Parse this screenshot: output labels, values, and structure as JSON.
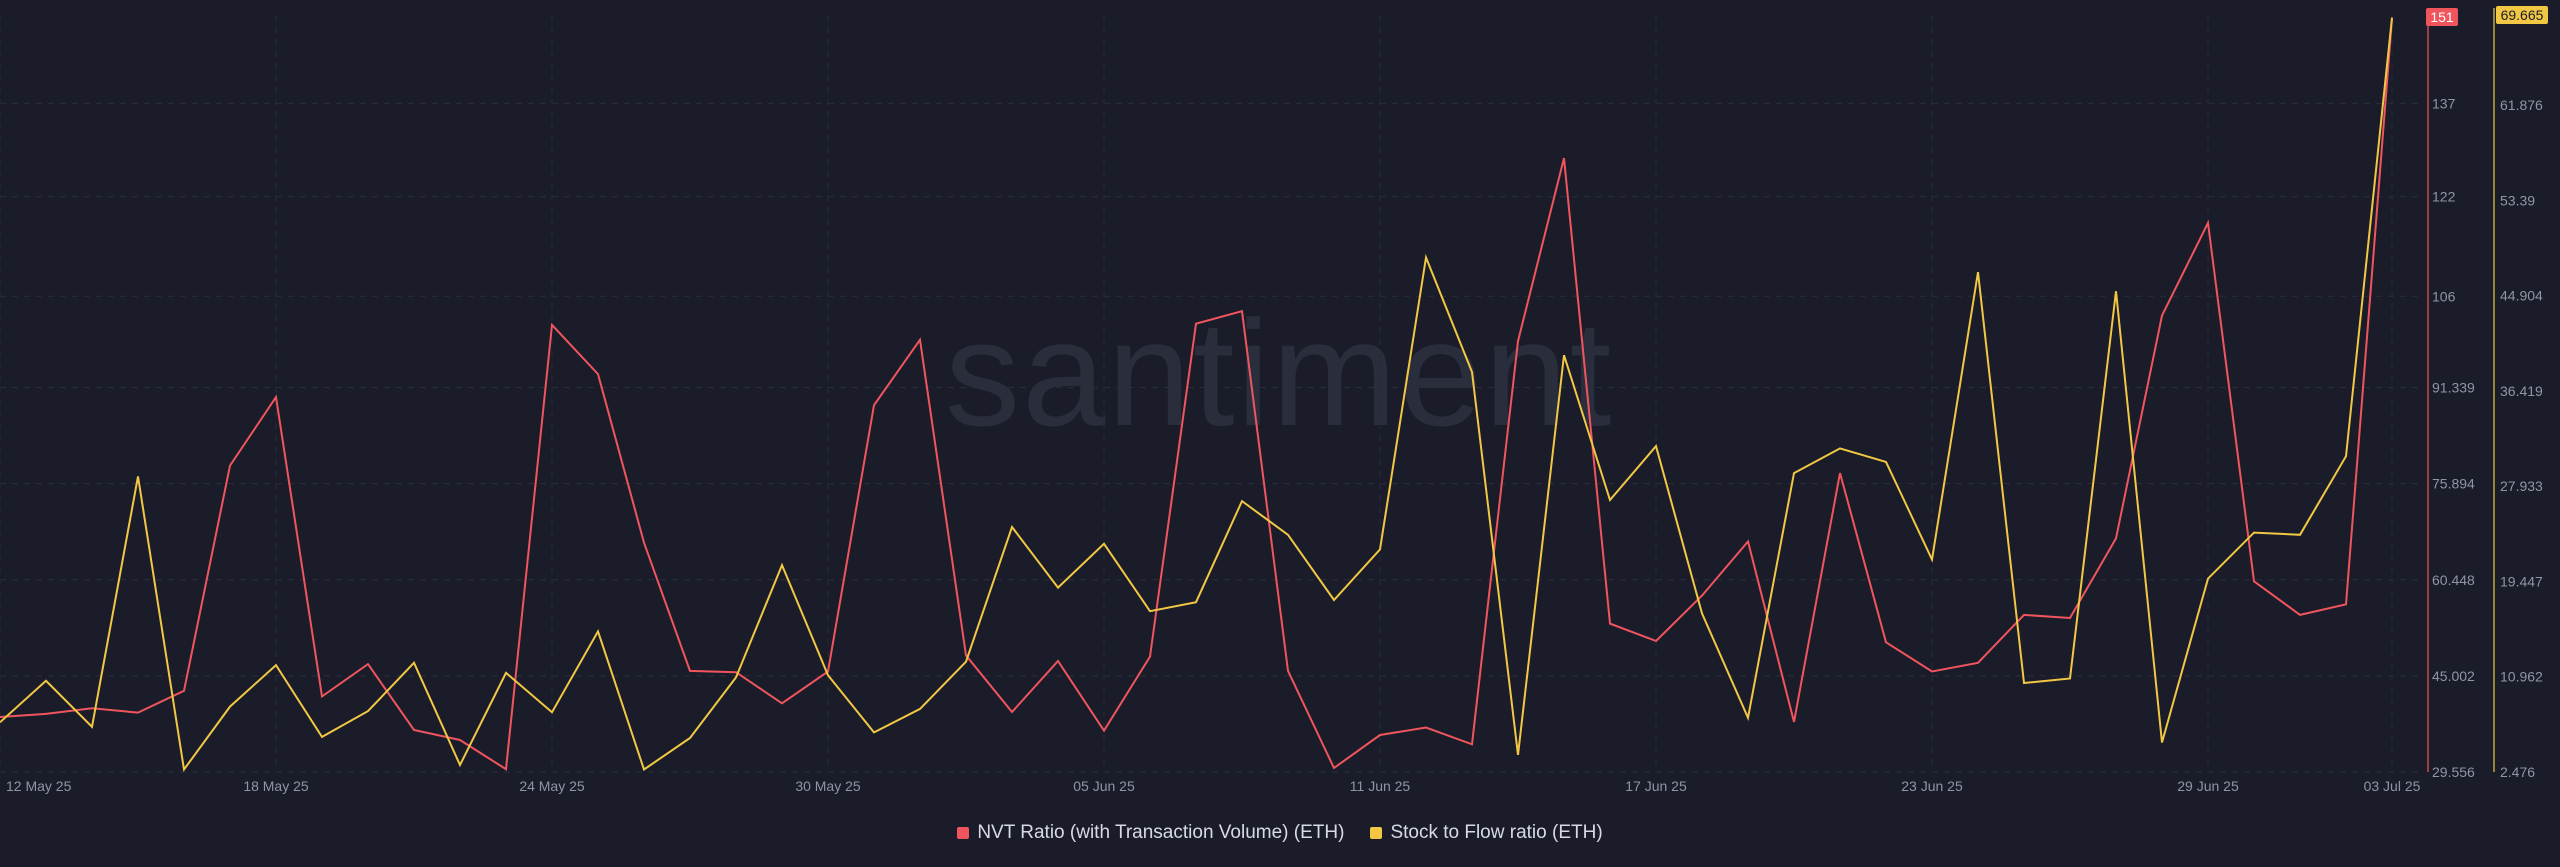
{
  "watermark": "santiment",
  "chart_data": {
    "type": "line",
    "x_ticks": [
      "12 May 25",
      "18 May 25",
      "24 May 25",
      "30 May 25",
      "05 Jun 25",
      "11 Jun 25",
      "17 Jun 25",
      "23 Jun 25",
      "29 Jun 25",
      "03 Jul 25"
    ],
    "x_tick_index": [
      0,
      6,
      12,
      18,
      24,
      30,
      36,
      42,
      48,
      52
    ],
    "dates": [
      "2025-05-12",
      "2025-05-13",
      "2025-05-14",
      "2025-05-15",
      "2025-05-16",
      "2025-05-17",
      "2025-05-18",
      "2025-05-19",
      "2025-05-20",
      "2025-05-21",
      "2025-05-22",
      "2025-05-23",
      "2025-05-24",
      "2025-05-25",
      "2025-05-26",
      "2025-05-27",
      "2025-05-28",
      "2025-05-29",
      "2025-05-30",
      "2025-05-31",
      "2025-06-01",
      "2025-06-02",
      "2025-06-03",
      "2025-06-04",
      "2025-06-05",
      "2025-06-06",
      "2025-06-07",
      "2025-06-08",
      "2025-06-09",
      "2025-06-10",
      "2025-06-11",
      "2025-06-12",
      "2025-06-13",
      "2025-06-14",
      "2025-06-15",
      "2025-06-16",
      "2025-06-17",
      "2025-06-18",
      "2025-06-19",
      "2025-06-20",
      "2025-06-21",
      "2025-06-22",
      "2025-06-23",
      "2025-06-24",
      "2025-06-25",
      "2025-06-26",
      "2025-06-27",
      "2025-06-28",
      "2025-06-29",
      "2025-06-30",
      "2025-07-01",
      "2025-07-02",
      "2025-07-03"
    ],
    "series": [
      {
        "name": "NVT Ratio (with Transaction Volume) (ETH)",
        "color": "#f0555e",
        "axis": "left",
        "values": [
          38.4,
          38.9,
          39.8,
          39.1,
          42.6,
          78.8,
          89.8,
          41.7,
          46.9,
          36.3,
          34.7,
          30.0,
          101.4,
          93.5,
          66.4,
          45.8,
          45.6,
          40.6,
          45.7,
          88.5,
          99.0,
          48.3,
          39.2,
          47.4,
          36.2,
          48.1,
          101.6,
          103.6,
          45.8,
          30.2,
          35.5,
          36.7,
          34.0,
          98.8,
          128.2,
          53.4,
          50.6,
          57.9,
          66.6,
          37.6,
          77.6,
          50.4,
          45.7,
          47.1,
          54.8,
          54.3,
          67.1,
          102.9,
          117.8,
          60.2,
          54.8,
          56.5,
          150.6
        ]
      },
      {
        "name": "Stock to Flow ratio (ETH)",
        "color": "#f2c744",
        "axis": "right",
        "values": [
          6.9,
          10.6,
          6.5,
          28.8,
          2.7,
          8.3,
          12.0,
          5.6,
          7.9,
          12.2,
          3.1,
          11.3,
          7.8,
          15.0,
          2.7,
          5.5,
          10.9,
          20.9,
          11.1,
          6.0,
          8.1,
          12.3,
          24.3,
          18.9,
          22.8,
          16.8,
          17.6,
          26.6,
          23.6,
          17.8,
          22.3,
          48.3,
          38.1,
          4.0,
          39.6,
          26.7,
          31.5,
          16.6,
          7.3,
          29.1,
          31.3,
          30.1,
          21.4,
          47.0,
          10.4,
          10.8,
          45.3,
          5.1,
          19.7,
          23.8,
          23.6,
          30.6,
          69.665
        ]
      }
    ],
    "y_left": {
      "ticks": [
        "29.556",
        "45.002",
        "60.448",
        "75.894",
        "91.339",
        "106",
        "122",
        "137"
      ],
      "tick_values": [
        29.556,
        45.002,
        60.448,
        75.894,
        91.339,
        106,
        122,
        137
      ],
      "range": [
        29.556,
        151.2
      ],
      "last_value": "151"
    },
    "y_right": {
      "ticks": [
        "2.476",
        "10.962",
        "19.447",
        "27.933",
        "36.419",
        "44.904",
        "53.39",
        "61.876"
      ],
      "tick_values": [
        2.476,
        10.962,
        19.447,
        27.933,
        36.419,
        44.904,
        53.39,
        61.876
      ],
      "range": [
        2.476,
        69.9
      ],
      "last_value": "69.665"
    }
  },
  "legend": [
    {
      "label": "NVT Ratio (with Transaction Volume) (ETH)",
      "color": "#f0555e"
    },
    {
      "label": "Stock to Flow ratio (ETH)",
      "color": "#f2c744"
    }
  ]
}
